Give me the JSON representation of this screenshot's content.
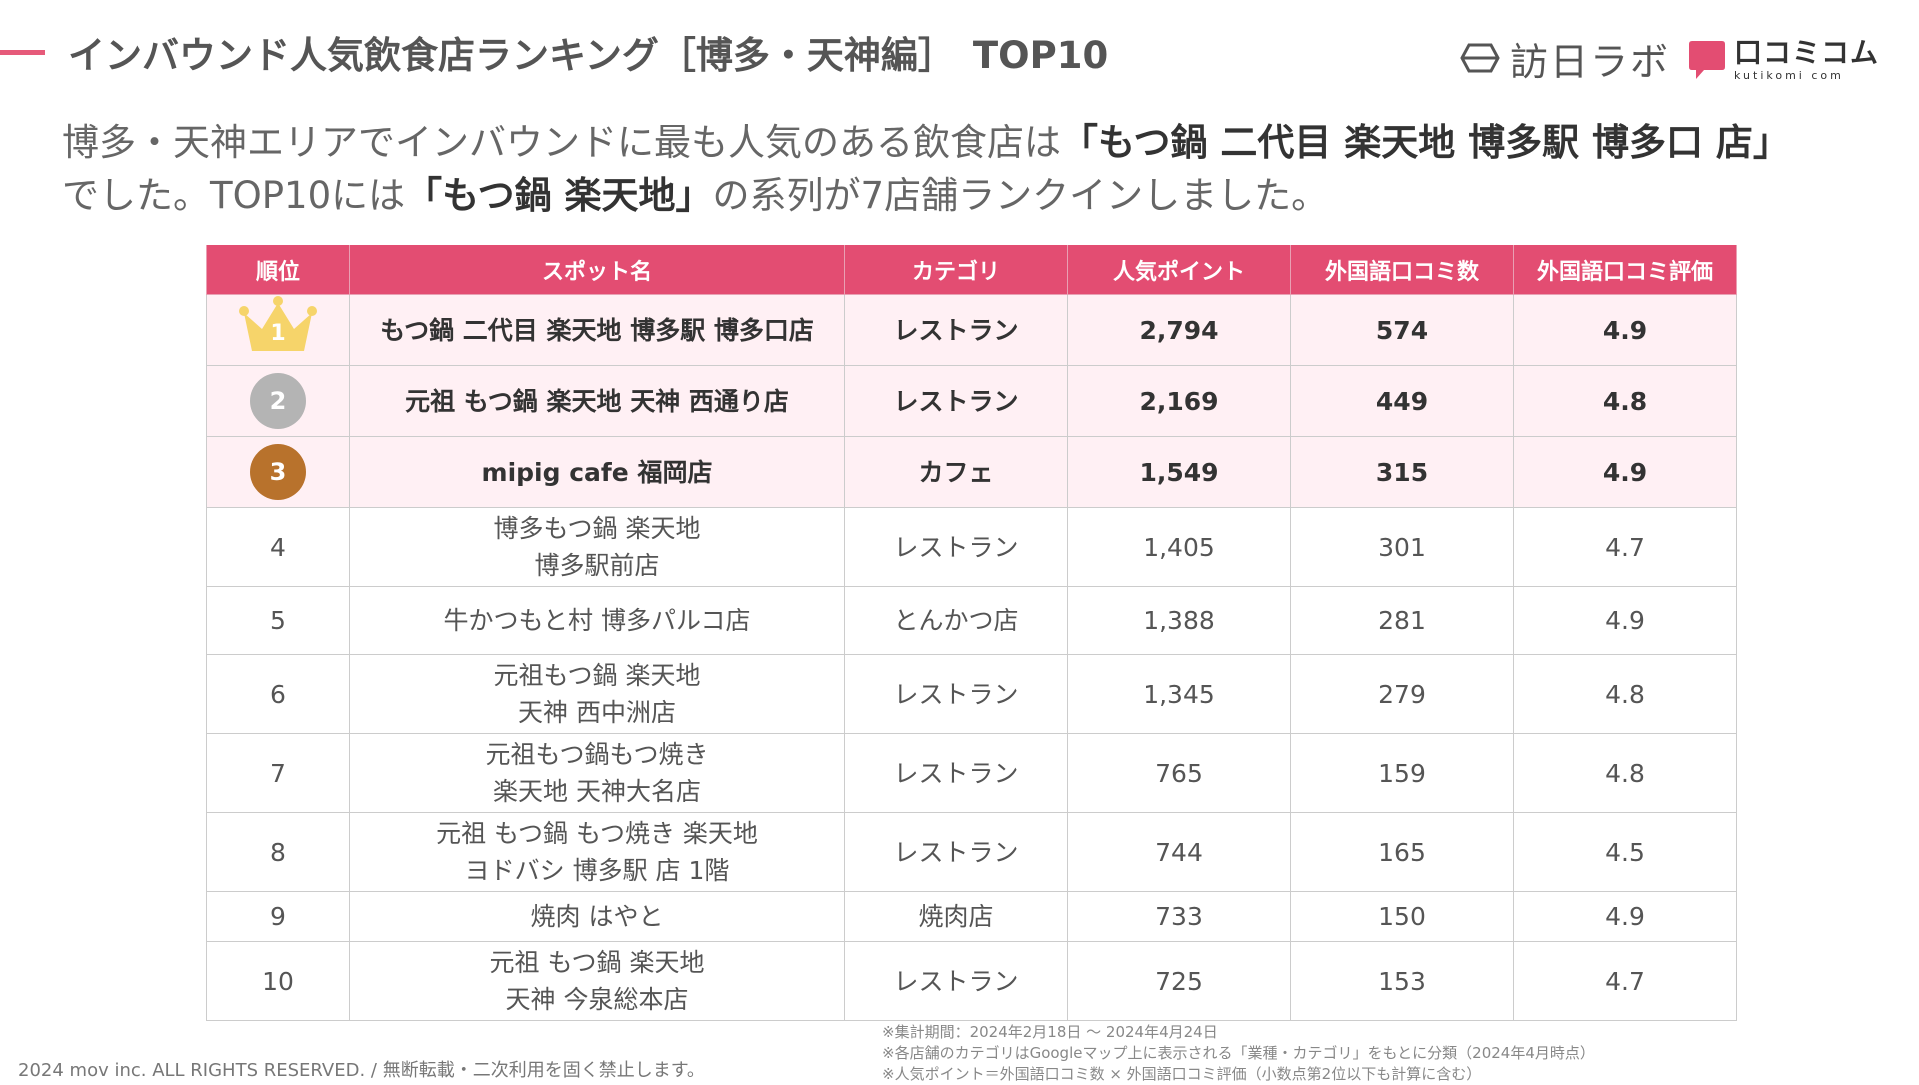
{
  "header": {
    "title": "インバウンド人気飲食店ランキング［博多・天神編］",
    "title_suffix": "TOP10",
    "logo_houjin": "訪日ラボ",
    "logo_kuchikomi": "口コミコム",
    "logo_kuchikomi_sub": "kutikomi com",
    "accent_color": "#e65a7a"
  },
  "intro": {
    "line1_plain": "博多・天神エリアでインバウンドに最も人気のある飲食店は",
    "line1_emphasis": "「もつ鍋 二代目 楽天地 博多駅 博多口 店」",
    "line2_start": "でした。TOP10には",
    "line2_emphasis": "「もつ鍋 楽天地」",
    "line2_end": "の系列が7店舗ランクインしました。"
  },
  "table": {
    "headers": {
      "rank": "順位",
      "name": "スポット名",
      "category": "カテゴリ",
      "points": "人気ポイント",
      "reviews": "外国語口コミ数",
      "rating": "外国語口コミ評価"
    },
    "header_color": "#e34d72",
    "rows": [
      {
        "rank": "1",
        "name1": "もつ鍋 二代目 楽天地 博多駅 博多口店",
        "name2": "",
        "category": "レストラン",
        "points": "2,794",
        "reviews": "574",
        "rating": "4.9"
      },
      {
        "rank": "2",
        "name1": "元祖 もつ鍋 楽天地 天神 西通り店",
        "name2": "",
        "category": "レストラン",
        "points": "2,169",
        "reviews": "449",
        "rating": "4.8"
      },
      {
        "rank": "3",
        "name1": "mipig cafe 福岡店",
        "name2": "",
        "category": "カフェ",
        "points": "1,549",
        "reviews": "315",
        "rating": "4.9"
      },
      {
        "rank": "4",
        "name1": "博多もつ鍋 楽天地",
        "name2": "博多駅前店",
        "category": "レストラン",
        "points": "1,405",
        "reviews": "301",
        "rating": "4.7"
      },
      {
        "rank": "5",
        "name1": "牛かつもと村 博多パルコ店",
        "name2": "",
        "category": "とんかつ店",
        "points": "1,388",
        "reviews": "281",
        "rating": "4.9"
      },
      {
        "rank": "6",
        "name1": "元祖もつ鍋 楽天地",
        "name2": "天神 西中洲店",
        "category": "レストラン",
        "points": "1,345",
        "reviews": "279",
        "rating": "4.8"
      },
      {
        "rank": "7",
        "name1": "元祖もつ鍋もつ焼き",
        "name2": "楽天地 天神大名店",
        "category": "レストラン",
        "points": "765",
        "reviews": "159",
        "rating": "4.8"
      },
      {
        "rank": "8",
        "name1": "元祖 もつ鍋 もつ焼き 楽天地",
        "name2": "ヨドバシ 博多駅 店 1階",
        "category": "レストラン",
        "points": "744",
        "reviews": "165",
        "rating": "4.5"
      },
      {
        "rank": "9",
        "name1": "焼肉 はやと",
        "name2": "",
        "category": "焼肉店",
        "points": "733",
        "reviews": "150",
        "rating": "4.9"
      },
      {
        "rank": "10",
        "name1": "元祖 もつ鍋 楽天地",
        "name2": "天神 今泉総本店",
        "category": "レストラン",
        "points": "725",
        "reviews": "153",
        "rating": "4.7"
      }
    ]
  },
  "footnotes": [
    "※集計期間：2024年2月18日 〜 2024年4月24日",
    "※各店舗のカテゴリはGoogleマップ上に表示される「業種・カテゴリ」をもとに分類（2024年4月時点）",
    "※人気ポイント＝外国語口コミ数 × 外国語口コミ評価（小数点第2位以下も計算に含む）"
  ],
  "copyright": "2024 mov inc. ALL RIGHTS RESERVED. / 無断転載・二次利用を固く禁止します。"
}
